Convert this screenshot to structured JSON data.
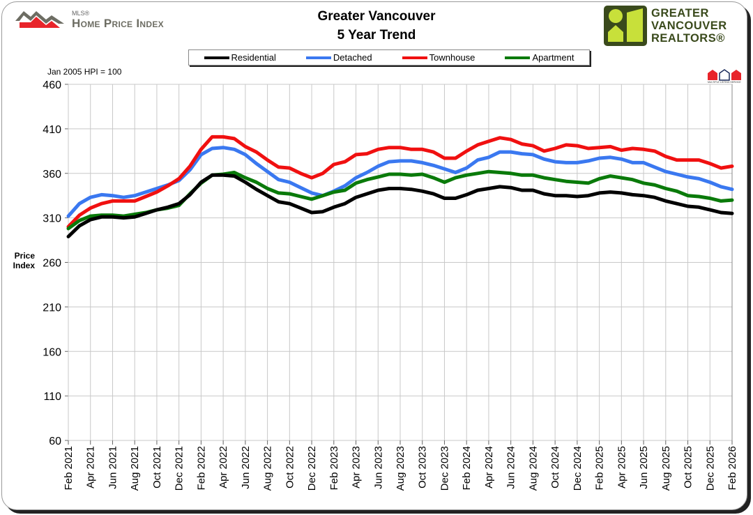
{
  "header": {
    "title_line1": "Greater Vancouver",
    "title_line2": "5 Year Trend",
    "left_logo": {
      "small": "MLS®",
      "main": "Home Price Index"
    },
    "right_logo": {
      "line1": "GREATER",
      "line2": "VANCOUVER",
      "line3": "REALTORS®"
    },
    "mls_badge": "MLS"
  },
  "chart_data": {
    "type": "line",
    "title": "Greater Vancouver 5 Year Trend",
    "note": "Jan 2005 HPI = 100",
    "ylabel": "Price Index",
    "ylim": [
      60,
      460
    ],
    "yticks": [
      60,
      110,
      160,
      210,
      260,
      310,
      360,
      410,
      460
    ],
    "grid": true,
    "legend_placement": "top",
    "x_start": "Feb 2021",
    "x_end": "Feb 2026",
    "xtick_labels": [
      "Feb 2021",
      "Apr 2021",
      "Jun 2021",
      "Aug 2021",
      "Oct 2021",
      "Dec 2021",
      "Feb 2022",
      "Apr 2022",
      "Jun 2022",
      "Aug 2022",
      "Oct 2022",
      "Dec 2022",
      "Feb 2023",
      "Apr 2023",
      "Jun 2023",
      "Aug 2023",
      "Oct 2023",
      "Dec 2023",
      "Feb 2024",
      "Apr 2024",
      "Jun 2024",
      "Aug 2024",
      "Oct 2024",
      "Dec 2024",
      "Feb 2025",
      "Apr 2025",
      "Jun 2025",
      "Aug 2025",
      "Oct 2025",
      "Dec 2025",
      "Feb 2026"
    ],
    "series": [
      {
        "name": "Residential",
        "color": "#000000",
        "values": [
          289,
          301,
          308,
          311,
          311,
          310,
          311,
          315,
          319,
          322,
          326,
          336,
          350,
          358,
          358,
          357,
          350,
          342,
          335,
          328,
          326,
          321,
          316,
          317,
          322,
          326,
          333,
          337,
          341,
          343,
          343,
          342,
          340,
          337,
          332,
          332,
          336,
          341,
          343,
          345,
          344,
          341,
          341,
          337,
          335,
          335,
          334,
          335,
          338,
          339,
          338,
          336,
          335,
          333,
          329,
          326,
          323,
          322,
          319,
          316,
          315
        ]
      },
      {
        "name": "Detached",
        "color": "#3a78f0",
        "values": [
          312,
          326,
          333,
          336,
          335,
          333,
          335,
          339,
          343,
          347,
          352,
          364,
          381,
          388,
          389,
          387,
          381,
          371,
          362,
          353,
          350,
          344,
          338,
          335,
          340,
          346,
          355,
          361,
          368,
          373,
          374,
          374,
          372,
          369,
          365,
          361,
          366,
          375,
          378,
          384,
          384,
          382,
          381,
          376,
          373,
          372,
          372,
          374,
          377,
          378,
          376,
          372,
          372,
          367,
          362,
          359,
          356,
          354,
          350,
          345,
          342
        ]
      },
      {
        "name": "Townhouse",
        "color": "#f01010",
        "values": [
          300,
          313,
          321,
          326,
          329,
          329,
          329,
          334,
          339,
          346,
          354,
          368,
          387,
          401,
          401,
          399,
          390,
          384,
          375,
          367,
          366,
          360,
          355,
          360,
          370,
          373,
          381,
          382,
          387,
          389,
          389,
          387,
          387,
          384,
          377,
          377,
          385,
          392,
          396,
          400,
          398,
          393,
          391,
          385,
          388,
          392,
          391,
          388,
          389,
          390,
          386,
          388,
          387,
          385,
          379,
          375,
          375,
          375,
          371,
          366,
          368
        ]
      },
      {
        "name": "Apartment",
        "color": "#0a7a0a",
        "values": [
          298,
          307,
          312,
          313,
          313,
          312,
          314,
          316,
          319,
          321,
          324,
          337,
          349,
          358,
          359,
          361,
          355,
          350,
          343,
          338,
          337,
          334,
          331,
          335,
          339,
          341,
          349,
          353,
          356,
          359,
          359,
          358,
          359,
          355,
          350,
          355,
          358,
          360,
          362,
          361,
          360,
          358,
          358,
          355,
          353,
          351,
          350,
          349,
          354,
          357,
          355,
          353,
          349,
          347,
          343,
          340,
          335,
          334,
          332,
          329,
          330
        ]
      }
    ]
  }
}
